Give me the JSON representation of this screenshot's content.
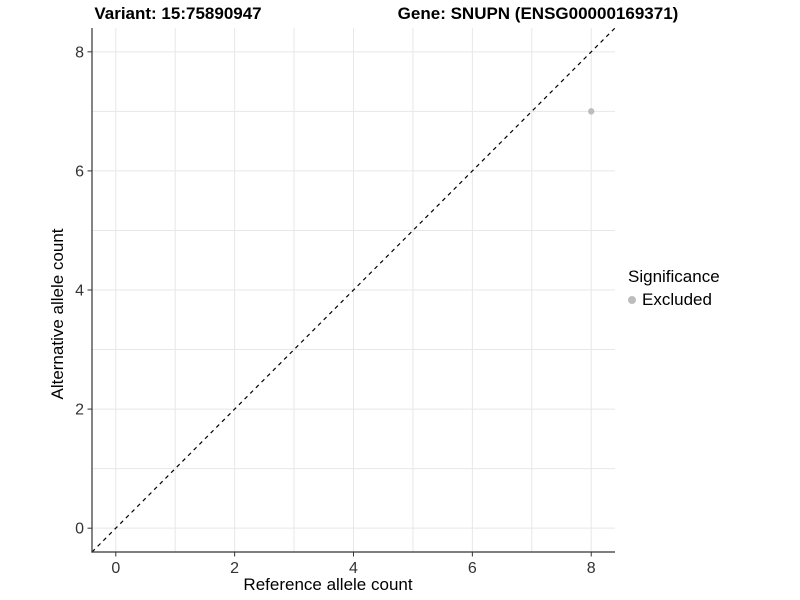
{
  "chart_data": {
    "type": "scatter",
    "title_left": "Variant: 15:75890947",
    "title_right": "Gene: SNUPN (ENSG00000169371)",
    "xlabel": "Reference allele count",
    "ylabel": "Alternative allele count",
    "xlim": [
      -0.4,
      8.4
    ],
    "ylim": [
      -0.4,
      8.4
    ],
    "xticks": [
      0,
      2,
      4,
      6,
      8
    ],
    "yticks": [
      0,
      2,
      4,
      6,
      8
    ],
    "xgrid": [
      0,
      1,
      2,
      3,
      4,
      5,
      6,
      7,
      8
    ],
    "ygrid": [
      0,
      1,
      2,
      3,
      4,
      5,
      6,
      7,
      8
    ],
    "grid": true,
    "points": [
      {
        "x": 8,
        "y": 7,
        "series": "Excluded"
      }
    ],
    "reference_line": {
      "type": "identity",
      "style": "dashed",
      "from": [
        -0.4,
        -0.4
      ],
      "to": [
        8.4,
        8.4
      ]
    },
    "legend": {
      "title": "Significance",
      "position": "right",
      "items": [
        {
          "label": "Excluded",
          "color": "#bdbdbd"
        }
      ]
    },
    "colors": {
      "point": "#bdbdbd",
      "grid": "#e7e7e7",
      "axis_line": "#333333",
      "tick_mark": "#333333",
      "tick_text": "#333333",
      "reference_line": "#000000",
      "background": "#ffffff"
    }
  }
}
